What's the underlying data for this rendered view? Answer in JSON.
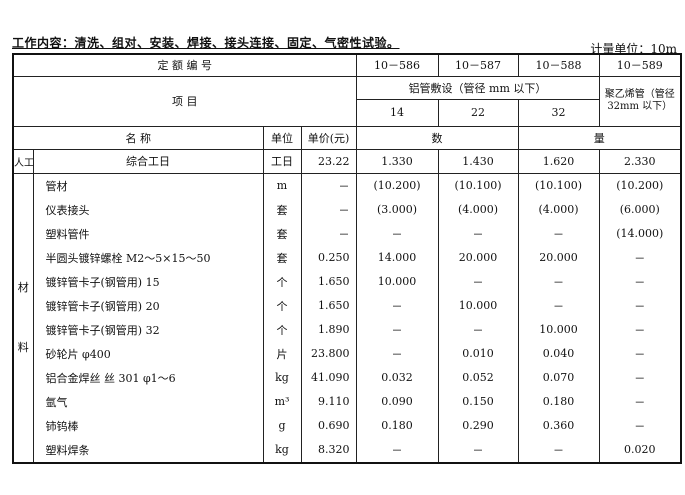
{
  "work_content": "工作内容：清洗、组对、安装、焊接、接头连接、固定、气密性试验。",
  "measure_unit": "计量单位：10m",
  "header": {
    "quota_code_label": "定 额 编 号",
    "codes": [
      "10－586",
      "10－587",
      "10－588",
      "10－589"
    ],
    "item_label": "项 目",
    "group_label": "铝管敷设（管径 mm 以下）",
    "diameters": [
      "14",
      "22",
      "32"
    ],
    "pe_label": "聚乙烯管（管径32mm 以下）",
    "name_label": "名 称",
    "unit_label": "单位",
    "price_label": "单价(元)",
    "qty_label_1": "数",
    "qty_label_2": "量"
  },
  "labor": {
    "category": "人工",
    "name": "综合工日",
    "unit": "工日",
    "price": "23.22",
    "values": [
      "1.330",
      "1.430",
      "1.620",
      "2.330"
    ]
  },
  "materials_category": [
    "材",
    "料"
  ],
  "materials": [
    {
      "name": "管材",
      "unit": "m",
      "price": "－",
      "values": [
        "(10.200)",
        "(10.100)",
        "(10.100)",
        "(10.200)"
      ]
    },
    {
      "name": "仪表接头",
      "unit": "套",
      "price": "－",
      "values": [
        "(3.000)",
        "(4.000)",
        "(4.000)",
        "(6.000)"
      ]
    },
    {
      "name": "塑料管件",
      "unit": "套",
      "price": "－",
      "values": [
        "－",
        "－",
        "－",
        "(14.000)"
      ]
    },
    {
      "name": "半圆头镀锌螺栓 M2～5×15～50",
      "unit": "套",
      "price": "0.250",
      "values": [
        "14.000",
        "20.000",
        "20.000",
        "－"
      ]
    },
    {
      "name": "镀锌管卡子(钢管用) 15",
      "unit": "个",
      "price": "1.650",
      "values": [
        "10.000",
        "－",
        "－",
        "－"
      ]
    },
    {
      "name": "镀锌管卡子(钢管用) 20",
      "unit": "个",
      "price": "1.650",
      "values": [
        "－",
        "10.000",
        "－",
        "－"
      ]
    },
    {
      "name": "镀锌管卡子(钢管用) 32",
      "unit": "个",
      "price": "1.890",
      "values": [
        "－",
        "－",
        "10.000",
        "－"
      ]
    },
    {
      "name": "砂轮片 φ400",
      "unit": "片",
      "price": "23.800",
      "values": [
        "－",
        "0.010",
        "0.040",
        "－"
      ]
    },
    {
      "name": "铝合金焊丝 丝 301 φ1～6",
      "unit": "kg",
      "price": "41.090",
      "values": [
        "0.032",
        "0.052",
        "0.070",
        "－"
      ]
    },
    {
      "name": "氩气",
      "unit": "m³",
      "price": "9.110",
      "values": [
        "0.090",
        "0.150",
        "0.180",
        "－"
      ]
    },
    {
      "name": "铈钨棒",
      "unit": "g",
      "price": "0.690",
      "values": [
        "0.180",
        "0.290",
        "0.360",
        "－"
      ]
    },
    {
      "name": "塑料焊条",
      "unit": "kg",
      "price": "8.320",
      "values": [
        "－",
        "－",
        "－",
        "0.020"
      ]
    }
  ]
}
